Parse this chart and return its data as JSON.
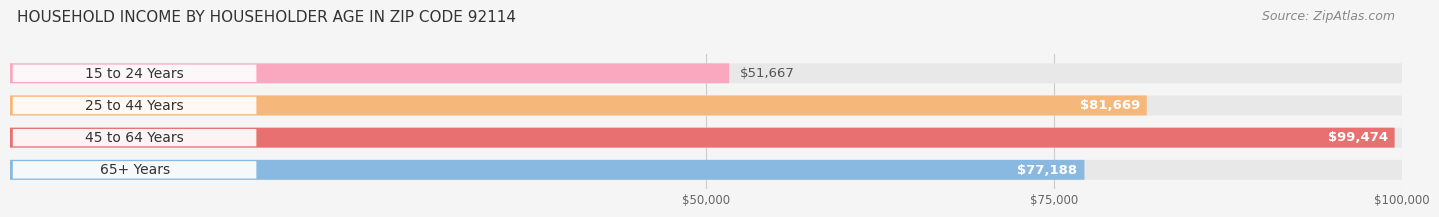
{
  "title": "HOUSEHOLD INCOME BY HOUSEHOLDER AGE IN ZIP CODE 92114",
  "source": "Source: ZipAtlas.com",
  "categories": [
    "15 to 24 Years",
    "25 to 44 Years",
    "45 to 64 Years",
    "65+ Years"
  ],
  "values": [
    51667,
    81669,
    99474,
    77188
  ],
  "bar_colors": [
    "#f9a8c0",
    "#f5b87a",
    "#e87070",
    "#89b8e0"
  ],
  "label_colors": [
    "#d4547a",
    "#e8963a",
    "#c94040",
    "#4a80b0"
  ],
  "value_labels": [
    "$51,667",
    "$81,669",
    "$99,474",
    "$77,188"
  ],
  "value_label_inside": [
    false,
    true,
    true,
    true
  ],
  "xmax": 100000,
  "xticks": [
    50000,
    75000,
    100000
  ],
  "xticklabels": [
    "$50,000",
    "$75,000",
    "$100,000"
  ],
  "background_color": "#f5f5f5",
  "bar_background": "#e8e8e8",
  "title_fontsize": 11,
  "source_fontsize": 9,
  "label_fontsize": 10,
  "value_fontsize": 9.5
}
